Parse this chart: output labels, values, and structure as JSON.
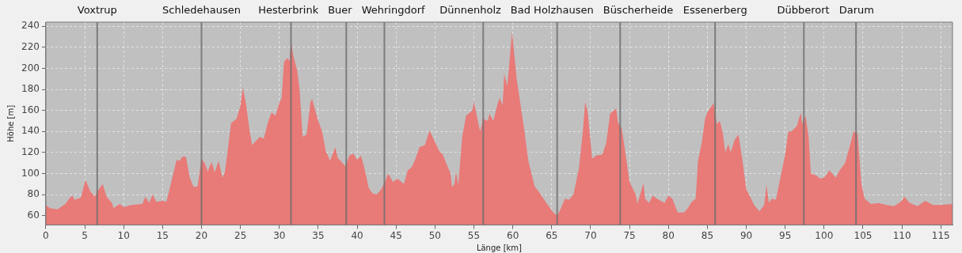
{
  "chart_data": {
    "type": "area",
    "xlabel": "Länge [km]",
    "ylabel": "Höhe [m]",
    "x": [
      0,
      0.5,
      1.5,
      2.5,
      3,
      3.4,
      3.7,
      4.5,
      5.1,
      5.7,
      6.3,
      6.6,
      7.3,
      7.8,
      8.5,
      8.7,
      9.5,
      10,
      11,
      12.4,
      12.8,
      13.3,
      13.7,
      14.2,
      15,
      15.5,
      16.8,
      17.2,
      17.5,
      18,
      18.5,
      19,
      19.5,
      20,
      20.4,
      20.8,
      21.3,
      21.7,
      22.2,
      22.7,
      23,
      23.5,
      23.8,
      24.5,
      25,
      25.3,
      25.7,
      26.2,
      26.5,
      27,
      27.5,
      28,
      28.5,
      29,
      29.5,
      30,
      30.3,
      30.6,
      31,
      31.3,
      31.5,
      31.8,
      32.3,
      32.6,
      33,
      33.5,
      34,
      34.2,
      35,
      35.5,
      36,
      36.2,
      36.5,
      37.2,
      37.5,
      38.5,
      39,
      39.5,
      40,
      40.5,
      41,
      41.5,
      42,
      42.5,
      43,
      43.5,
      44,
      44.6,
      45.2,
      46,
      46.5,
      47,
      47.5,
      48,
      48.7,
      49.3,
      50,
      50.5,
      51,
      52,
      52.2,
      52.5,
      52.7,
      53,
      53.5,
      54,
      54.8,
      55,
      55.8,
      56.2,
      56.8,
      57,
      57.5,
      58,
      58.3,
      58.7,
      58.9,
      59.3,
      59.9,
      60.5,
      61.5,
      62,
      62.8,
      63.5,
      64.5,
      65.2,
      65.7,
      66.2,
      66.7,
      67.2,
      67.8,
      68.5,
      69,
      69.3,
      69.6,
      70.2,
      70.7,
      71.5,
      72,
      72.5,
      73,
      73.3,
      73.5,
      74,
      74.5,
      75,
      75.8,
      76,
      76.8,
      77,
      77.5,
      78,
      78.5,
      79.5,
      80,
      80.5,
      81.2,
      82,
      82.5,
      83,
      83.5,
      83.8,
      84.3,
      84.7,
      85,
      85.8,
      86.2,
      86.6,
      87,
      87.3,
      87.7,
      88,
      88.5,
      89,
      89.5,
      90,
      90.5,
      91,
      91.7,
      92.3,
      92.6,
      92.9,
      93.3,
      93.8,
      94.5,
      95,
      95.4,
      95.8,
      96.5,
      97,
      97.2,
      97.6,
      98,
      98.3,
      99,
      99.5,
      100,
      100.7,
      101.5,
      102,
      102.7,
      103.3,
      103.8,
      104.3,
      104.8,
      105.2,
      106,
      107,
      108,
      109,
      110,
      110.3,
      111,
      112,
      113,
      114,
      115,
      116.5
    ],
    "values": [
      70,
      67,
      66,
      71,
      76,
      79,
      75,
      77,
      94,
      83,
      78,
      83,
      90,
      78,
      72,
      67,
      71,
      68,
      70,
      71,
      78,
      72,
      80,
      73,
      74,
      73,
      113,
      112,
      116,
      116,
      96,
      87,
      88,
      114,
      110,
      102,
      111,
      101,
      112,
      96,
      101,
      130,
      148,
      152,
      164,
      182,
      167,
      140,
      127,
      131,
      135,
      133,
      148,
      158,
      155,
      167,
      172,
      206,
      210,
      207,
      225,
      212,
      198,
      180,
      135,
      137,
      168,
      171,
      150,
      140,
      120,
      118,
      112,
      125,
      115,
      107,
      117,
      119,
      113,
      117,
      103,
      86,
      81,
      80,
      84,
      91,
      100,
      92,
      95,
      90,
      103,
      106,
      114,
      125,
      127,
      141,
      130,
      122,
      118,
      100,
      87,
      90,
      102,
      89,
      135,
      155,
      160,
      168,
      140,
      152,
      150,
      157,
      150,
      165,
      172,
      165,
      195,
      183,
      235,
      190,
      140,
      112,
      88,
      81,
      70,
      63,
      60,
      67,
      76,
      75,
      80,
      105,
      140,
      168,
      160,
      114,
      117,
      118,
      129,
      157,
      160,
      162,
      149,
      143,
      118,
      92,
      80,
      71,
      91,
      76,
      72,
      79,
      76,
      72,
      79,
      76,
      63,
      63,
      67,
      73,
      76,
      112,
      130,
      152,
      158,
      167,
      147,
      150,
      138,
      120,
      128,
      120,
      132,
      137,
      113,
      85,
      78,
      70,
      64,
      70,
      89,
      72,
      76,
      75,
      100,
      118,
      140,
      140,
      145,
      158,
      147,
      155,
      136,
      100,
      98,
      95,
      96,
      103,
      96,
      103,
      110,
      126,
      140,
      138,
      90,
      76,
      71,
      72,
      70,
      69,
      74,
      78,
      72,
      69,
      74,
      70,
      70,
      71
    ],
    "color": "#e87a78",
    "xlim": [
      0,
      116.5
    ],
    "ylim": [
      51,
      244
    ],
    "xticks": [
      0,
      5,
      10,
      15,
      20,
      25,
      30,
      35,
      40,
      45,
      50,
      55,
      60,
      65,
      70,
      75,
      80,
      85,
      90,
      95,
      100,
      105,
      110,
      115
    ],
    "yticks": [
      60,
      80,
      100,
      120,
      140,
      160,
      180,
      200,
      220,
      240
    ],
    "grid": true,
    "ref_lines": [
      {
        "axis": "x",
        "value": 6.6,
        "label": "Voxtrup",
        "color": "#707070"
      },
      {
        "axis": "x",
        "value": 20,
        "label": "Schledehausen",
        "color": "#707070"
      },
      {
        "axis": "x",
        "value": 31.5,
        "label": "Hesterbrink",
        "color": "#707070"
      },
      {
        "axis": "x",
        "value": 38.6,
        "label": "Buer",
        "color": "#707070"
      },
      {
        "axis": "x",
        "value": 43.5,
        "label": "Wehringdorf",
        "color": "#707070"
      },
      {
        "axis": "x",
        "value": 56.2,
        "label": "Dünnenholz",
        "color": "#707070"
      },
      {
        "axis": "x",
        "value": 65.7,
        "label": "Bad Holzhausen",
        "color": "#707070"
      },
      {
        "axis": "x",
        "value": 73.8,
        "label": "Büscherheide",
        "color": "#707070"
      },
      {
        "axis": "x",
        "value": 86,
        "label": "Essenerberg",
        "color": "#707070"
      },
      {
        "axis": "x",
        "value": 97.4,
        "label": "Dübberort",
        "color": "#707070"
      },
      {
        "axis": "x",
        "value": 104.1,
        "label": "Darum",
        "color": "#707070"
      }
    ]
  }
}
